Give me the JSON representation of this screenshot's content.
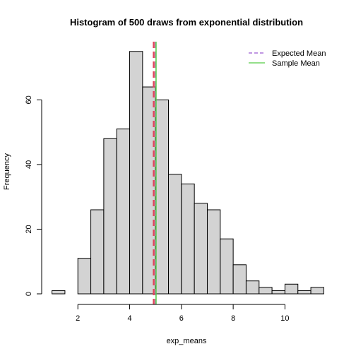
{
  "chart_data": {
    "type": "bar",
    "title": "Histogram of 500 draws from exponential distribution",
    "xlabel": "exp_means",
    "ylabel": "Frequency",
    "bin_width": 0.5,
    "bins": [
      {
        "start": 1.0,
        "end": 1.5,
        "count": 1
      },
      {
        "start": 1.5,
        "end": 2.0,
        "count": 0
      },
      {
        "start": 2.0,
        "end": 2.5,
        "count": 11
      },
      {
        "start": 2.5,
        "end": 3.0,
        "count": 26
      },
      {
        "start": 3.0,
        "end": 3.5,
        "count": 48
      },
      {
        "start": 3.5,
        "end": 4.0,
        "count": 51
      },
      {
        "start": 4.0,
        "end": 4.5,
        "count": 75
      },
      {
        "start": 4.5,
        "end": 5.0,
        "count": 64
      },
      {
        "start": 5.0,
        "end": 5.5,
        "count": 60
      },
      {
        "start": 5.5,
        "end": 6.0,
        "count": 37
      },
      {
        "start": 6.0,
        "end": 6.5,
        "count": 34
      },
      {
        "start": 6.5,
        "end": 7.0,
        "count": 28
      },
      {
        "start": 7.0,
        "end": 7.5,
        "count": 26
      },
      {
        "start": 7.5,
        "end": 8.0,
        "count": 17
      },
      {
        "start": 8.0,
        "end": 8.5,
        "count": 9
      },
      {
        "start": 8.5,
        "end": 9.0,
        "count": 4
      },
      {
        "start": 9.0,
        "end": 9.5,
        "count": 2
      },
      {
        "start": 9.5,
        "end": 10.0,
        "count": 1
      },
      {
        "start": 10.0,
        "end": 10.5,
        "count": 3
      },
      {
        "start": 10.5,
        "end": 11.0,
        "count": 1
      },
      {
        "start": 11.0,
        "end": 11.5,
        "count": 2
      }
    ],
    "xlim": [
      1.0,
      11.5
    ],
    "ylim": [
      0,
      78
    ],
    "x_ticks": [
      2,
      4,
      6,
      8,
      10
    ],
    "y_ticks": [
      0,
      20,
      40,
      60
    ],
    "bar_fill": "#d3d3d3",
    "bar_stroke": "#000000",
    "vlines": [
      {
        "name": "Expected Mean",
        "x": 5.0,
        "color": "#9b59d0",
        "dashed": true
      },
      {
        "name": "Sample Mean",
        "x": 5.02,
        "color": "#55cc44",
        "dashed": false
      }
    ],
    "overlap_line": {
      "x": 4.93,
      "color": "#e0465a",
      "dashed": true
    },
    "legend": {
      "placement": "top-right",
      "entries": [
        {
          "label": "Expected Mean",
          "color": "#9b59d0",
          "dashed": true
        },
        {
          "label": "Sample Mean",
          "color": "#55cc44",
          "dashed": false
        }
      ]
    },
    "grid": false
  }
}
